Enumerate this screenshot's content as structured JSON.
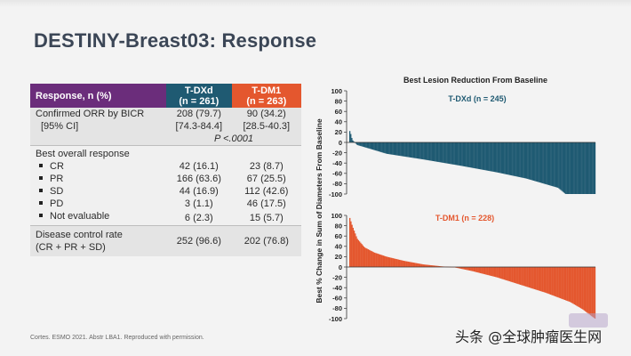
{
  "title": "DESTINY-Breast03: Response",
  "table": {
    "header": {
      "label": "Response, n (%)",
      "tdxd_line1": "T-DXd",
      "tdxd_line2": "(n = 261)",
      "tdm1_line1": "T-DM1",
      "tdm1_line2": "(n = 263)"
    },
    "orr": {
      "label1": "Confirmed ORR by BICR",
      "label2": "[95% CI]",
      "tdxd1": "208 (79.7)",
      "tdxd2": "[74.3-84.4]",
      "tdm11": "90 (34.2)",
      "tdm12": "[28.5-40.3]",
      "pvalue": "P <.0001"
    },
    "bor_label": "Best overall response",
    "bor": [
      {
        "label": "CR",
        "tdxd": "42 (16.1)",
        "tdm1": "23 (8.7)"
      },
      {
        "label": "PR",
        "tdxd": "166 (63.6)",
        "tdm1": "67 (25.5)"
      },
      {
        "label": "SD",
        "tdxd": "44 (16.9)",
        "tdm1": "112 (42.6)"
      },
      {
        "label": "PD",
        "tdxd": "3 (1.1)",
        "tdm1": "46 (17.5)"
      },
      {
        "label": "Not evaluable",
        "tdxd": "6 (2.3)",
        "tdm1": "15 (5.7)"
      }
    ],
    "dcr": {
      "label1": "Disease control rate",
      "label2": "(CR + PR + SD)",
      "tdxd": "252 (96.6)",
      "tdm1": "202 (76.8)"
    }
  },
  "footer": "Cortes. ESMO 2021. Abstr LBA1. Reproduced with permission.",
  "watermark": "头条 @全球肿瘤医生网",
  "colors": {
    "tdxd": "#1f5a72",
    "tdm1": "#e4572e",
    "label_purple": "#6b2d7b"
  },
  "chart_data": {
    "type": "bar",
    "title": "Best Lesion Reduction From Baseline",
    "ylabel": "Best % Change in Sum of Diameters From Baseline",
    "ylim": [
      -100,
      100
    ],
    "yticks": [
      100,
      80,
      60,
      40,
      20,
      0,
      -20,
      -40,
      -60,
      -80,
      -100
    ],
    "series": [
      {
        "name": "T-DXd (n = 245)",
        "n": 245,
        "color": "#1f5a72",
        "profile": [
          [
            0,
            22
          ],
          [
            0.005,
            15
          ],
          [
            0.01,
            5
          ],
          [
            0.02,
            0
          ],
          [
            0.03,
            -5
          ],
          [
            0.08,
            -12
          ],
          [
            0.15,
            -22
          ],
          [
            0.3,
            -33
          ],
          [
            0.45,
            -45
          ],
          [
            0.6,
            -58
          ],
          [
            0.72,
            -70
          ],
          [
            0.85,
            -88
          ],
          [
            0.88,
            -100
          ],
          [
            1.0,
            -100
          ]
        ]
      },
      {
        "name": "T-DM1 (n = 228)",
        "n": 228,
        "color": "#e4572e",
        "profile": [
          [
            0,
            95
          ],
          [
            0.01,
            80
          ],
          [
            0.03,
            55
          ],
          [
            0.06,
            38
          ],
          [
            0.1,
            28
          ],
          [
            0.15,
            20
          ],
          [
            0.22,
            12
          ],
          [
            0.3,
            5
          ],
          [
            0.38,
            1
          ],
          [
            0.42,
            0
          ],
          [
            0.5,
            -8
          ],
          [
            0.6,
            -20
          ],
          [
            0.7,
            -35
          ],
          [
            0.8,
            -50
          ],
          [
            0.9,
            -68
          ],
          [
            0.95,
            -82
          ],
          [
            1.0,
            -100
          ]
        ]
      }
    ]
  }
}
